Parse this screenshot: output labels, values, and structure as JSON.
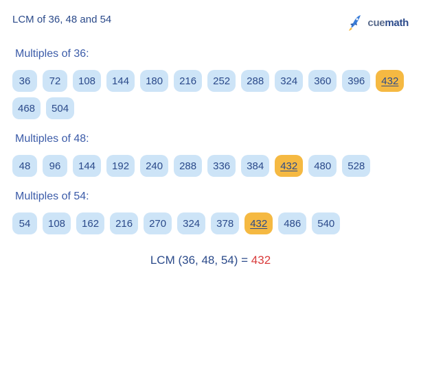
{
  "title": "LCM of 36, 48 and 54",
  "logo": {
    "brand_a": "cue",
    "brand_b": "math"
  },
  "colors": {
    "text_primary": "#2b4a8a",
    "text_secondary": "#3b5ba8",
    "chip_normal_bg": "#cde4f7",
    "chip_highlight_bg": "#f5b942",
    "result_value": "#d93a3a",
    "background": "#ffffff"
  },
  "sections": [
    {
      "label": "Multiples of 36:",
      "values": [
        36,
        72,
        108,
        144,
        180,
        216,
        252,
        288,
        324,
        360,
        396,
        432,
        468,
        504
      ],
      "highlight": 432
    },
    {
      "label": "Multiples of 48:",
      "values": [
        48,
        96,
        144,
        192,
        240,
        288,
        336,
        384,
        432,
        480,
        528
      ],
      "highlight": 432
    },
    {
      "label": "Multiples of 54:",
      "values": [
        54,
        108,
        162,
        216,
        270,
        324,
        378,
        432,
        486,
        540
      ],
      "highlight": 432
    }
  ],
  "result": {
    "label": "LCM (36, 48, 54) = ",
    "value": "432"
  },
  "chip_style": {
    "border_radius": 10,
    "font_size": 15,
    "height": 32,
    "gap": 8
  }
}
